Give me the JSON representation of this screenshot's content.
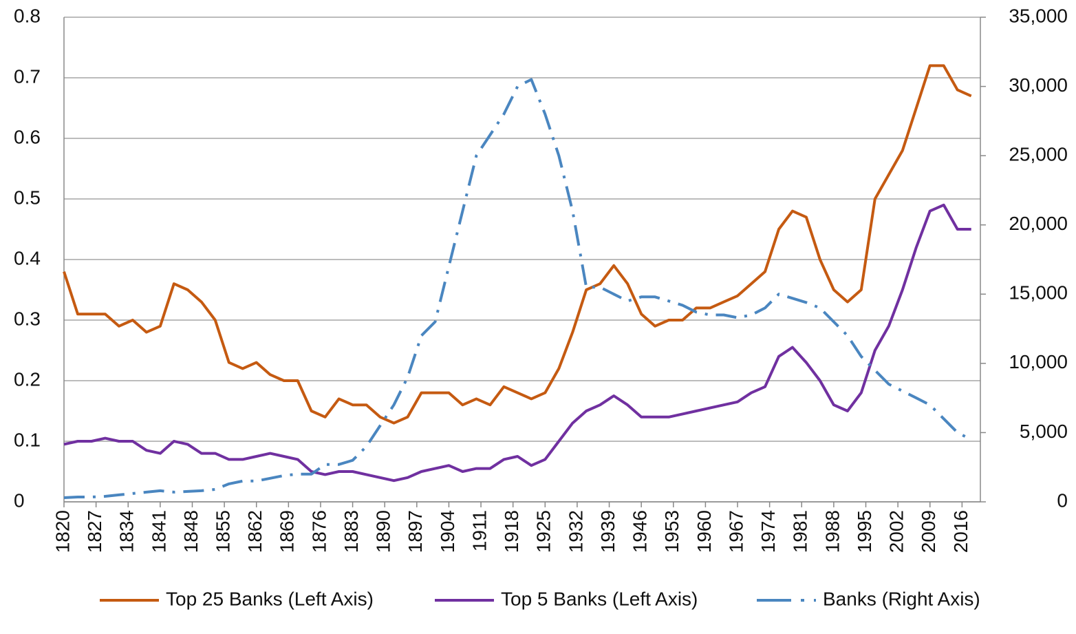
{
  "chart_data": {
    "type": "line",
    "x": [
      1820,
      1823,
      1826,
      1829,
      1832,
      1835,
      1838,
      1841,
      1844,
      1847,
      1850,
      1853,
      1856,
      1859,
      1862,
      1865,
      1868,
      1871,
      1874,
      1877,
      1880,
      1883,
      1886,
      1889,
      1892,
      1895,
      1898,
      1901,
      1904,
      1907,
      1910,
      1913,
      1916,
      1919,
      1922,
      1925,
      1928,
      1931,
      1934,
      1937,
      1940,
      1943,
      1946,
      1949,
      1952,
      1955,
      1958,
      1961,
      1964,
      1967,
      1970,
      1973,
      1976,
      1979,
      1982,
      1985,
      1988,
      1991,
      1994,
      1997,
      2000,
      2003,
      2006,
      2009,
      2012,
      2015,
      2018
    ],
    "series": [
      {
        "name": "Top 25 Banks (Left Axis)",
        "color": "#c55a11",
        "line_style": "solid",
        "values": [
          0.38,
          0.31,
          0.31,
          0.31,
          0.29,
          0.3,
          0.28,
          0.29,
          0.36,
          0.35,
          0.33,
          0.3,
          0.23,
          0.22,
          0.23,
          0.21,
          0.2,
          0.2,
          0.15,
          0.14,
          0.17,
          0.16,
          0.16,
          0.14,
          0.13,
          0.14,
          0.18,
          0.18,
          0.18,
          0.16,
          0.17,
          0.16,
          0.19,
          0.18,
          0.17,
          0.18,
          0.22,
          0.28,
          0.35,
          0.36,
          0.39,
          0.36,
          0.31,
          0.29,
          0.3,
          0.3,
          0.32,
          0.32,
          0.33,
          0.34,
          0.36,
          0.38,
          0.45,
          0.48,
          0.47,
          0.4,
          0.35,
          0.33,
          0.35,
          0.5,
          0.54,
          0.58,
          0.65,
          0.72,
          0.72,
          0.68,
          0.67
        ]
      },
      {
        "name": "Top 5 Banks (Left Axis)",
        "color": "#7030a0",
        "line_style": "solid",
        "values": [
          0.095,
          0.1,
          0.1,
          0.105,
          0.1,
          0.1,
          0.085,
          0.08,
          0.1,
          0.095,
          0.08,
          0.08,
          0.07,
          0.07,
          0.075,
          0.08,
          0.075,
          0.07,
          0.05,
          0.045,
          0.05,
          0.05,
          0.045,
          0.04,
          0.035,
          0.04,
          0.05,
          0.055,
          0.06,
          0.05,
          0.055,
          0.055,
          0.07,
          0.075,
          0.06,
          0.07,
          0.1,
          0.13,
          0.15,
          0.16,
          0.175,
          0.16,
          0.14,
          0.14,
          0.14,
          0.145,
          0.15,
          0.155,
          0.16,
          0.165,
          0.18,
          0.19,
          0.24,
          0.255,
          0.23,
          0.2,
          0.16,
          0.15,
          0.18,
          0.25,
          0.29,
          0.35,
          0.42,
          0.48,
          0.49,
          0.45,
          0.45
        ]
      },
      {
        "name": "Banks (Right Axis)",
        "color": "#4a86c0",
        "line_style": "dash-dot",
        "axis": "y2",
        "values": [
          300,
          350,
          350,
          400,
          500,
          600,
          700,
          800,
          700,
          750,
          800,
          900,
          1300,
          1500,
          1500,
          1700,
          1900,
          2000,
          2000,
          2700,
          2700,
          3000,
          4000,
          5500,
          7000,
          9000,
          12000,
          13000,
          17000,
          21000,
          25000,
          26500,
          28000,
          30000,
          30500,
          28000,
          25000,
          21000,
          15500,
          15500,
          15000,
          14500,
          14800,
          14800,
          14500,
          14200,
          13700,
          13500,
          13500,
          13300,
          13500,
          14000,
          15000,
          14700,
          14400,
          14000,
          13000,
          12000,
          10500,
          9500,
          8500,
          8000,
          7500,
          7000,
          6000,
          5000,
          4500
        ]
      }
    ],
    "xlim": [
      1820,
      2020
    ],
    "xticks": [
      1820,
      1827,
      1834,
      1841,
      1848,
      1855,
      1862,
      1869,
      1876,
      1883,
      1890,
      1897,
      1904,
      1911,
      1918,
      1925,
      1932,
      1939,
      1946,
      1953,
      1960,
      1967,
      1974,
      1981,
      1988,
      1995,
      2002,
      2009,
      2016
    ],
    "ylim": [
      0,
      0.8
    ],
    "yticks": [
      0,
      0.1,
      0.2,
      0.3,
      0.4,
      0.5,
      0.6,
      0.7,
      0.8
    ],
    "y2lim": [
      0,
      35000
    ],
    "y2ticks": [
      0,
      {
        "value": 5000,
        "label": "5,000"
      },
      {
        "value": 10000,
        "label": "10,000"
      },
      {
        "value": 15000,
        "label": "15,000"
      },
      {
        "value": 20000,
        "label": "20,000"
      },
      {
        "value": 25000,
        "label": "25,000"
      },
      {
        "value": 30000,
        "label": "30,000"
      },
      {
        "value": 35000,
        "label": "35,000"
      }
    ],
    "grid": true,
    "legend": "bottom"
  }
}
